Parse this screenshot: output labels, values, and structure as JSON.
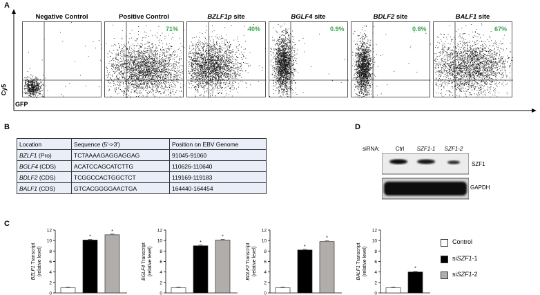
{
  "panels": {
    "a": "A",
    "b": "B",
    "c": "C",
    "d": "D"
  },
  "flow": {
    "ylabel": "Cy5",
    "xlabel": "GFP",
    "plots": [
      {
        "title_italic": "",
        "title_rest": "Negative Control",
        "percent": ""
      },
      {
        "title_italic": "",
        "title_rest": "Positive Control",
        "percent": "71%"
      },
      {
        "title_italic": "BZLF1p",
        "title_rest": " site",
        "percent": "40%"
      },
      {
        "title_italic": "BGLF4",
        "title_rest": " site",
        "percent": "0.9%"
      },
      {
        "title_italic": "BDLF2",
        "title_rest": " site",
        "percent": "0.6%"
      },
      {
        "title_italic": "BALF1",
        "title_rest": " site",
        "percent": "67%"
      }
    ]
  },
  "table": {
    "headers": [
      "Location",
      "Sequence (5'->3')",
      "Position on EBV Genome"
    ],
    "rows": [
      {
        "gene": "BZLF1",
        "region": " (Pro)",
        "sequence": "TCTAAAAGAGGAGGAG",
        "position": "91045-91060"
      },
      {
        "gene": "BGLF4",
        "region": " (CDS)",
        "sequence": "ACATCCAGCATCTTG",
        "position": "110626-110640"
      },
      {
        "gene": "BDLF2",
        "region": " (CDS)",
        "sequence": "TCGGCCACTGGCTCT",
        "position": "119169-119183"
      },
      {
        "gene": "BALF1",
        "region": " (CDS)",
        "sequence": "GTCACGGGGAACTGA",
        "position": "164440-164454"
      }
    ]
  },
  "western": {
    "sirna_label": "siRNA:",
    "lanes": [
      "Ctrl",
      "SZF1-1",
      "SZF1-2"
    ],
    "bands": [
      "SZF1",
      "GAPDH"
    ]
  },
  "legend": {
    "items": [
      {
        "prefix": "Control",
        "italic": "",
        "suffix": "",
        "color": "#ffffff"
      },
      {
        "prefix": "si",
        "italic": "SZF1",
        "suffix": "-1",
        "color": "#000000"
      },
      {
        "prefix": "si",
        "italic": "SZF1",
        "suffix": "-2",
        "color": "#b0adab"
      }
    ]
  },
  "chart_data": [
    {
      "type": "bar",
      "ylabel": "BZLF1 Transcript (relative level)",
      "ylim": [
        0,
        12
      ],
      "yticks": [
        0,
        2,
        4,
        6,
        8,
        10,
        12
      ],
      "categories": [
        "Control",
        "siSZF1-1",
        "siSZF1-2"
      ],
      "values": [
        1.0,
        10.1,
        11.1
      ],
      "significance": [
        "",
        "*",
        "*"
      ],
      "colors": [
        "#ffffff",
        "#000000",
        "#b0adab"
      ]
    },
    {
      "type": "bar",
      "ylabel": "BGLF4 Transcript (relative level)",
      "ylim": [
        0,
        12
      ],
      "yticks": [
        0,
        2,
        4,
        6,
        8,
        10,
        12
      ],
      "categories": [
        "Control",
        "siSZF1-1",
        "siSZF1-2"
      ],
      "values": [
        1.0,
        9.0,
        10.1
      ],
      "significance": [
        "",
        "*",
        "*"
      ],
      "colors": [
        "#ffffff",
        "#000000",
        "#b0adab"
      ]
    },
    {
      "type": "bar",
      "ylabel": "BDLF2 Transcript (relative level)",
      "ylim": [
        0,
        12
      ],
      "yticks": [
        0,
        2,
        4,
        6,
        8,
        10,
        12
      ],
      "categories": [
        "Control",
        "siSZF1-1",
        "siSZF1-2"
      ],
      "values": [
        1.0,
        8.2,
        9.8
      ],
      "significance": [
        "",
        "*",
        "*"
      ],
      "colors": [
        "#ffffff",
        "#000000",
        "#b0adab"
      ]
    },
    {
      "type": "bar",
      "ylabel": "BALF1 Transcript (relative level)",
      "ylim": [
        0,
        12
      ],
      "yticks": [
        0,
        2,
        4,
        6,
        8,
        10,
        12
      ],
      "categories": [
        "Control",
        "siSZF1-1"
      ],
      "values": [
        1.0,
        4.0
      ],
      "significance": [
        "",
        "*"
      ],
      "colors": [
        "#ffffff",
        "#000000"
      ]
    }
  ]
}
